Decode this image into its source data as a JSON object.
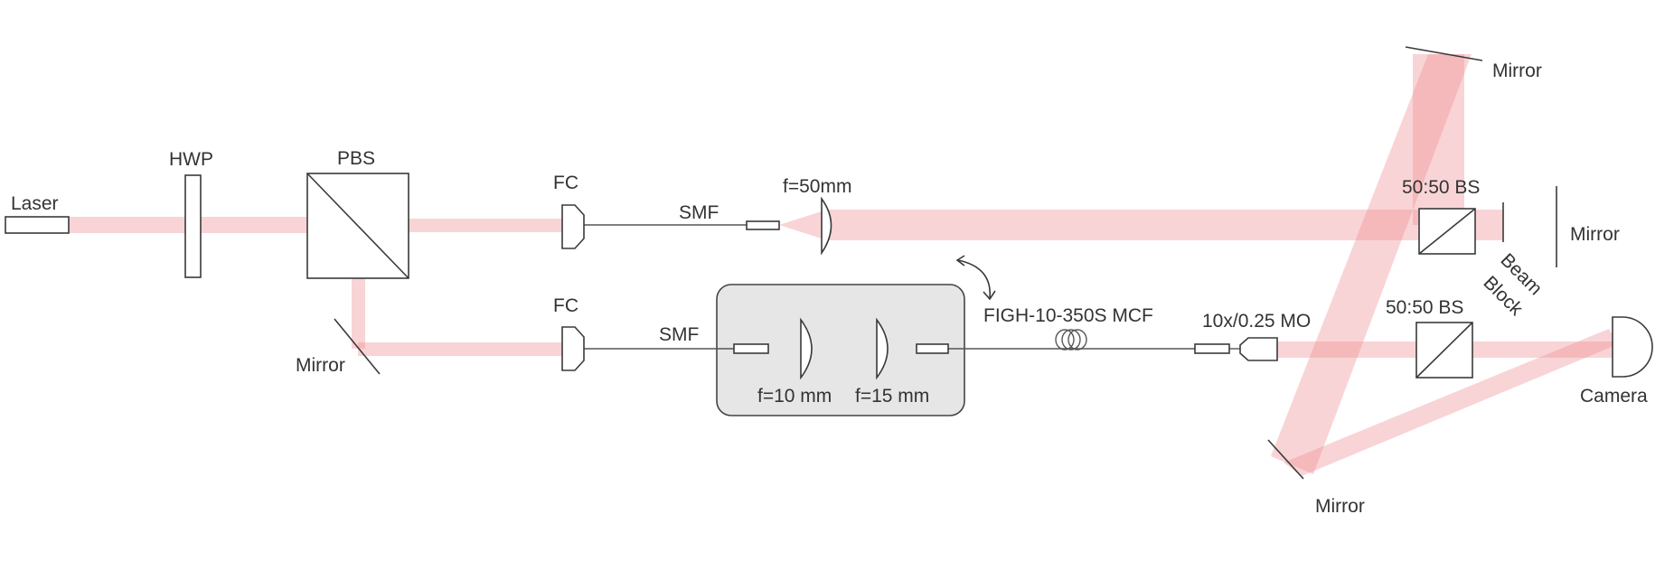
{
  "colors": {
    "beam": "#f08f92",
    "component_stroke": "#3a3a3a",
    "enclosure_fill": "#e6e6e6",
    "text": "#333333"
  },
  "labels": {
    "laser": "Laser",
    "hwp": "HWP",
    "pbs": "PBS",
    "fc_top": "FC",
    "fc_bottom": "FC",
    "smf_top": "SMF",
    "smf_bottom": "SMF",
    "lens_50": "f=50mm",
    "lens_10": "f=10 mm",
    "lens_15": "f=15 mm",
    "mcf": "FIGH-10-350S MCF",
    "objective": "10x/0.25 MO",
    "bs_top": "50:50 BS",
    "bs_bottom": "50:50 BS",
    "mirror_top_right": "Mirror",
    "mirror_right": "Mirror",
    "mirror_left": "Mirror",
    "mirror_bottom": "Mirror",
    "beam_block_line1": "Beam",
    "beam_block_line2": "Block",
    "camera": "Camera"
  }
}
